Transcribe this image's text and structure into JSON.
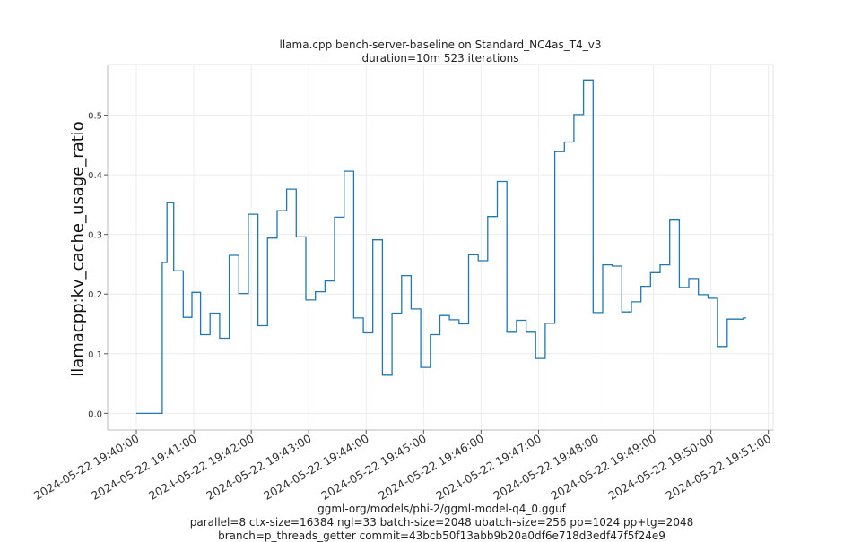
{
  "chart_data": {
    "type": "line",
    "title": "llama.cpp bench-server-baseline on Standard_NC4as_T4_v3",
    "subtitle": "duration=10m 523 iterations",
    "xlabel": "",
    "ylabel": "llamacpp:kv_cache_usage_ratio",
    "footer_lines": [
      "ggml-org/models/phi-2/ggml-model-q4_0.gguf",
      "parallel=8 ctx-size=16384 ngl=33 batch-size=2048 ubatch-size=256 pp=1024 pp+tg=2048",
      "branch=p_threads_getter commit=43bcb50f13abb9b20a0df6e718d3edf47f5f24e9"
    ],
    "x_ticks": [
      "2024-05-22 19:40:00",
      "2024-05-22 19:41:00",
      "2024-05-22 19:42:00",
      "2024-05-22 19:43:00",
      "2024-05-22 19:44:00",
      "2024-05-22 19:45:00",
      "2024-05-22 19:46:00",
      "2024-05-22 19:47:00",
      "2024-05-22 19:48:00",
      "2024-05-22 19:49:00",
      "2024-05-22 19:50:00",
      "2024-05-22 19:51:00"
    ],
    "xlim": [
      "2024-05-22 19:39:30",
      "2024-05-22 19:51:05"
    ],
    "y_ticks": [
      0.0,
      0.1,
      0.2,
      0.3,
      0.4,
      0.5
    ],
    "y_tick_labels": [
      "0.0",
      "0.1",
      "0.2",
      "0.3",
      "0.4",
      "0.5"
    ],
    "ylim": [
      -0.028,
      0.585
    ],
    "grid": true,
    "line_color": "#1f77b4",
    "series": [
      {
        "x": [
          "2024-05-22 19:40:00",
          "2024-05-22 19:40:27",
          "2024-05-22 19:40:32",
          "2024-05-22 19:40:39",
          "2024-05-22 19:40:49",
          "2024-05-22 19:40:58",
          "2024-05-22 19:41:07",
          "2024-05-22 19:41:17",
          "2024-05-22 19:41:27",
          "2024-05-22 19:41:37",
          "2024-05-22 19:41:47",
          "2024-05-22 19:41:57",
          "2024-05-22 19:42:07",
          "2024-05-22 19:42:17",
          "2024-05-22 19:42:27",
          "2024-05-22 19:42:37",
          "2024-05-22 19:42:47",
          "2024-05-22 19:42:57",
          "2024-05-22 19:43:07",
          "2024-05-22 19:43:17",
          "2024-05-22 19:43:27",
          "2024-05-22 19:43:37",
          "2024-05-22 19:43:47",
          "2024-05-22 19:43:57",
          "2024-05-22 19:44:07",
          "2024-05-22 19:44:17",
          "2024-05-22 19:44:27",
          "2024-05-22 19:44:37",
          "2024-05-22 19:44:47",
          "2024-05-22 19:44:57",
          "2024-05-22 19:45:07",
          "2024-05-22 19:45:17",
          "2024-05-22 19:45:27",
          "2024-05-22 19:45:37",
          "2024-05-22 19:45:47",
          "2024-05-22 19:45:57",
          "2024-05-22 19:46:07",
          "2024-05-22 19:46:17",
          "2024-05-22 19:46:27",
          "2024-05-22 19:46:37",
          "2024-05-22 19:46:47",
          "2024-05-22 19:46:57",
          "2024-05-22 19:47:07",
          "2024-05-22 19:47:17",
          "2024-05-22 19:47:27",
          "2024-05-22 19:47:37",
          "2024-05-22 19:47:47",
          "2024-05-22 19:47:57",
          "2024-05-22 19:48:07",
          "2024-05-22 19:48:17",
          "2024-05-22 19:48:27",
          "2024-05-22 19:48:37",
          "2024-05-22 19:48:47",
          "2024-05-22 19:48:57",
          "2024-05-22 19:49:07",
          "2024-05-22 19:49:17",
          "2024-05-22 19:49:27",
          "2024-05-22 19:49:37",
          "2024-05-22 19:49:47",
          "2024-05-22 19:49:57",
          "2024-05-22 19:50:07",
          "2024-05-22 19:50:17",
          "2024-05-22 19:50:27",
          "2024-05-22 19:50:34"
        ],
        "y": [
          0.0,
          0.253,
          0.353,
          0.239,
          0.161,
          0.203,
          0.132,
          0.168,
          0.126,
          0.265,
          0.201,
          0.334,
          0.147,
          0.294,
          0.34,
          0.376,
          0.296,
          0.19,
          0.204,
          0.222,
          0.329,
          0.406,
          0.16,
          0.135,
          0.291,
          0.064,
          0.168,
          0.231,
          0.175,
          0.077,
          0.132,
          0.164,
          0.157,
          0.15,
          0.266,
          0.256,
          0.33,
          0.389,
          0.136,
          0.156,
          0.136,
          0.092,
          0.151,
          0.439,
          0.455,
          0.501,
          0.559,
          0.169,
          0.249,
          0.247,
          0.17,
          0.187,
          0.213,
          0.236,
          0.249,
          0.324,
          0.211,
          0.226,
          0.199,
          0.193,
          0.112,
          0.158,
          0.158,
          0.16
        ]
      }
    ]
  }
}
